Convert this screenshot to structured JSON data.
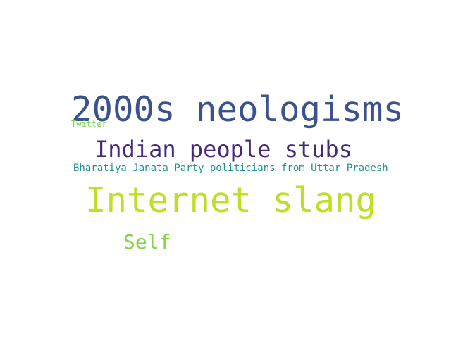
{
  "word_cloud": {
    "words": [
      {
        "text": "2000s neologisms",
        "color": "#3b528b"
      },
      {
        "text": "Twitter",
        "color": "#7ad151"
      },
      {
        "text": "Indian people stubs",
        "color": "#482878"
      },
      {
        "text": "Bharatiya Janata Party politicians from Uttar Pradesh",
        "color": "#21918c"
      },
      {
        "text": "Internet slang",
        "color": "#bddf26"
      },
      {
        "text": "Self",
        "color": "#86d549"
      }
    ]
  }
}
